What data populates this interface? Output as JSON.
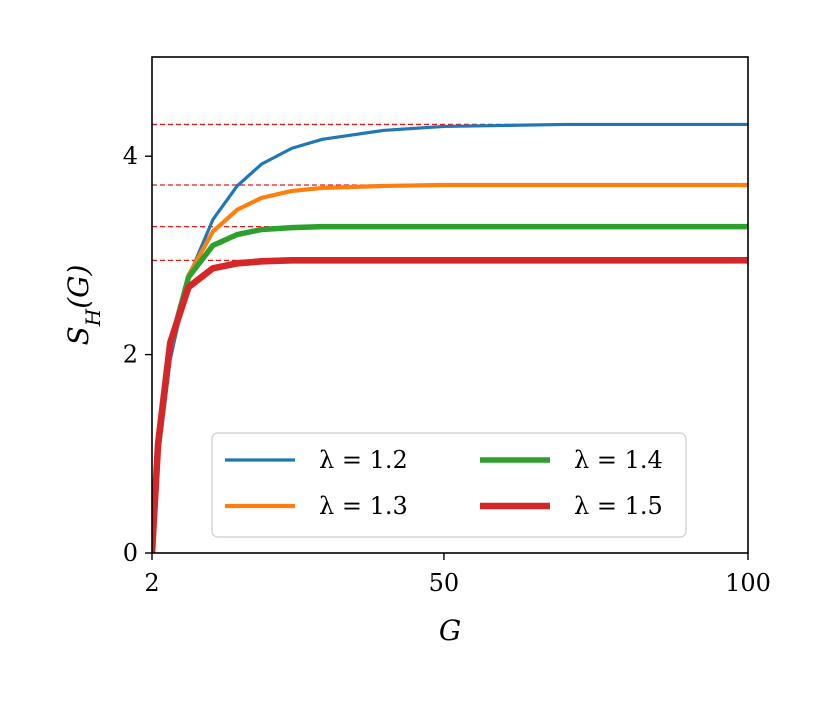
{
  "chart_data": {
    "type": "line",
    "title": "",
    "xlabel": "G",
    "ylabel": "S_H(G)",
    "xlim": [
      2,
      100
    ],
    "ylim": [
      0,
      5
    ],
    "x_ticks": [
      2,
      50,
      100
    ],
    "x_tick_labels": [
      "2",
      "50",
      "100"
    ],
    "y_ticks": [
      0,
      2,
      4
    ],
    "y_tick_labels": [
      "0",
      "2",
      "4"
    ],
    "grid": false,
    "legend": {
      "location": "lower-right",
      "columns": 2
    },
    "asymptote_style": "red dashed horizontal lines",
    "asymptote_color": "#e31a1c",
    "series": [
      {
        "name": "λ = 1.2",
        "color": "#1f77b4",
        "asymptote": 4.32,
        "x": [
          2,
          3,
          5,
          8,
          12,
          16,
          20,
          25,
          30,
          40,
          50,
          60,
          70,
          80,
          90,
          100
        ],
        "y": [
          0,
          0.95,
          1.95,
          2.78,
          3.36,
          3.7,
          3.92,
          4.08,
          4.17,
          4.26,
          4.3,
          4.31,
          4.32,
          4.32,
          4.32,
          4.32
        ]
      },
      {
        "name": "λ = 1.3",
        "color": "#ff7f0e",
        "asymptote": 3.71,
        "x": [
          2,
          3,
          5,
          8,
          12,
          16,
          20,
          25,
          30,
          40,
          50,
          60,
          70,
          80,
          90,
          100
        ],
        "y": [
          0,
          1.0,
          2.05,
          2.8,
          3.24,
          3.46,
          3.58,
          3.65,
          3.68,
          3.7,
          3.71,
          3.71,
          3.71,
          3.71,
          3.71,
          3.71
        ]
      },
      {
        "name": "λ = 1.4",
        "color": "#2ca02c",
        "asymptote": 3.29,
        "x": [
          2,
          3,
          5,
          8,
          12,
          16,
          20,
          25,
          30,
          40,
          50,
          60,
          70,
          80,
          90,
          100
        ],
        "y": [
          0,
          1.05,
          2.1,
          2.78,
          3.1,
          3.21,
          3.26,
          3.28,
          3.29,
          3.29,
          3.29,
          3.29,
          3.29,
          3.29,
          3.29,
          3.29
        ]
      },
      {
        "name": "λ = 1.5",
        "color": "#d62728",
        "asymptote": 2.95,
        "x": [
          2,
          3,
          5,
          8,
          12,
          16,
          20,
          25,
          30,
          40,
          50,
          60,
          70,
          80,
          90,
          100
        ],
        "y": [
          0,
          1.1,
          2.12,
          2.68,
          2.87,
          2.92,
          2.94,
          2.95,
          2.95,
          2.95,
          2.95,
          2.95,
          2.95,
          2.95,
          2.95,
          2.95
        ]
      }
    ]
  }
}
